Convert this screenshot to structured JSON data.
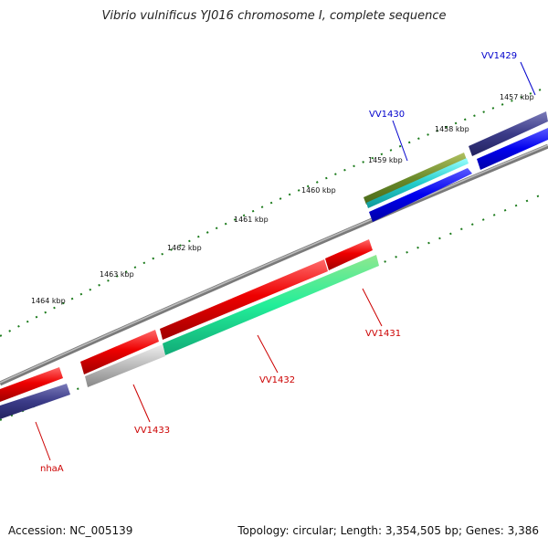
{
  "title": "Vibrio vulnificus YJ016 chromosome I, complete sequence",
  "footer": {
    "accession": "Accession: NC_005139",
    "summary": "Topology: circular; Length: 3,354,505 bp; Genes: 3,386"
  },
  "colors": {
    "forward_gene": "#3a3a8c",
    "reverse_gene": "#e00000",
    "backbone": "#777777",
    "tick": "#1a7a1a",
    "forward_label": "#0000cc",
    "reverse_label": "#cc0000"
  },
  "ticks": [
    {
      "label": "1457 kbp"
    },
    {
      "label": "1458 kbp"
    },
    {
      "label": "1459 kbp"
    },
    {
      "label": "1460 kbp"
    },
    {
      "label": "1461 kbp"
    },
    {
      "label": "1462 kbp"
    },
    {
      "label": "1463 kbp"
    },
    {
      "label": "1464 kbp"
    }
  ],
  "genes": [
    {
      "name": "VV1429",
      "strand": "forward"
    },
    {
      "name": "VV1430",
      "strand": "forward"
    },
    {
      "name": "VV1431",
      "strand": "reverse"
    },
    {
      "name": "VV1432",
      "strand": "reverse"
    },
    {
      "name": "VV1433",
      "strand": "reverse"
    },
    {
      "name": "nhaA",
      "strand": "reverse"
    }
  ]
}
